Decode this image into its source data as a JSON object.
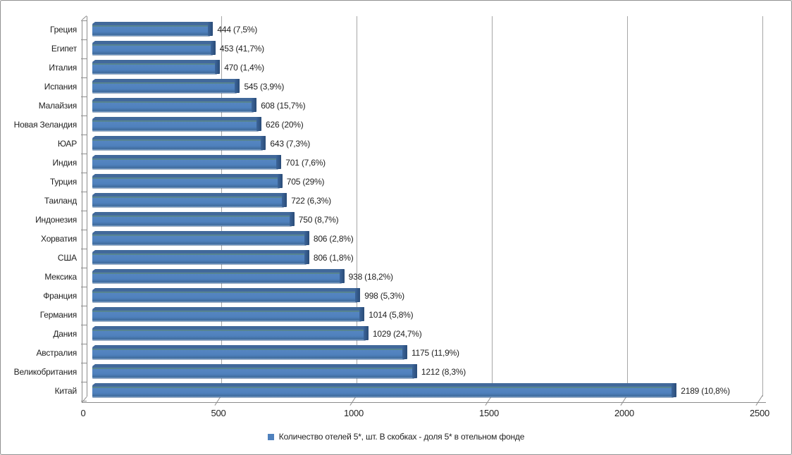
{
  "frame": {
    "background": "#ffffff",
    "border_color": "#919191"
  },
  "chart_data": {
    "type": "bar",
    "orientation": "horizontal",
    "title": "",
    "xlabel": "",
    "ylabel": "",
    "categories": [
      "Греция",
      "Египет",
      "Италия",
      "Испания",
      "Малайзия",
      "Новая Зеландия",
      "ЮАР",
      "Индия",
      "Турция",
      "Таиланд",
      "Индонезия",
      "Хорватия",
      "США",
      "Мексика",
      "Франция",
      "Германия",
      "Дания",
      "Австралия",
      "Великобритания",
      "Китай"
    ],
    "values": [
      444,
      453,
      470,
      545,
      608,
      626,
      643,
      701,
      705,
      722,
      750,
      806,
      806,
      938,
      998,
      1014,
      1029,
      1175,
      1212,
      2189
    ],
    "data_labels": [
      "444 (7,5%)",
      "453 (41,7%)",
      "470 (1,4%)",
      "545 (3,9%)",
      "608 (15,7%)",
      "626 (20%)",
      "643 (7,3%)",
      "701 (7,6%)",
      "705 (29%)",
      "722 (6,3%)",
      "750 (8,7%)",
      "806 (2,8%)",
      "806 (1,8%)",
      "938 (18,2%)",
      "998 (5,3%)",
      "1014 (5,8%)",
      "1029 (24,7%)",
      "1175 (11,9%)",
      "1212 (8,3%)",
      "2189 (10,8%)"
    ],
    "share_percent_in_parentheses": [
      7.5,
      41.7,
      1.4,
      3.9,
      15.7,
      20,
      7.3,
      7.6,
      29,
      6.3,
      8.7,
      2.8,
      1.8,
      18.2,
      5.3,
      5.8,
      24.7,
      11.9,
      8.3,
      10.8
    ],
    "x_ticks": [
      0,
      500,
      1000,
      1500,
      2000,
      2500
    ],
    "xlim": [
      0,
      2500
    ],
    "grid": true,
    "style": "excel-3d-bar",
    "bar_color": "#4f81bd",
    "bar_edge_color": "#2a4c77",
    "gridline_color": "#a6a6a6",
    "axis_color": "#8c8c8c",
    "text_color": "#1f1f1f",
    "legend": {
      "position": "bottom-center",
      "items": [
        {
          "label": "Количество отелей 5*, шт. В скобках - доля 5* в отельном фонде",
          "color": "#4f81bd"
        }
      ]
    }
  }
}
